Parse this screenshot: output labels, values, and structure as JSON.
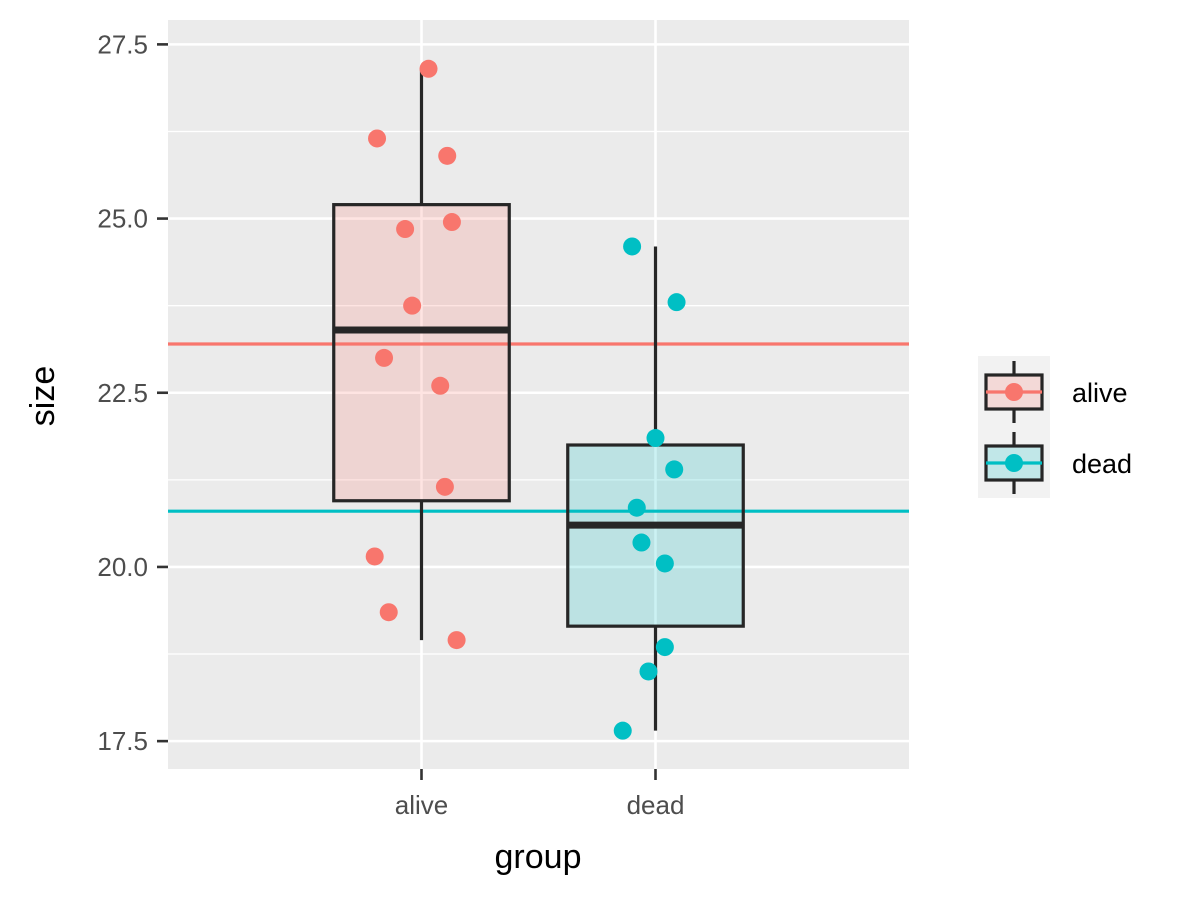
{
  "chart_data": {
    "type": "boxplot",
    "xlabel": "group",
    "ylabel": "size",
    "categories": [
      "alive",
      "dead"
    ],
    "ylim": [
      17.1,
      27.85
    ],
    "yticks": [
      17.5,
      20.0,
      22.5,
      25.0,
      27.5
    ],
    "ytick_labels": [
      "17.5",
      "20.0",
      "22.5",
      "25.0",
      "27.5"
    ],
    "grid": true,
    "legend_position": "right",
    "series": [
      {
        "name": "alive",
        "color": "#F8766D",
        "box_fill": "#F8766D",
        "box": {
          "lower_whisker": 18.95,
          "q1": 20.95,
          "median": 23.4,
          "q3": 25.2,
          "upper_whisker": 27.15
        },
        "mean_line": 23.2,
        "points": [
          {
            "x_jitter": -0.19,
            "y": 26.15
          },
          {
            "x_jitter": 0.03,
            "y": 27.15
          },
          {
            "x_jitter": 0.11,
            "y": 25.9
          },
          {
            "x_jitter": -0.07,
            "y": 24.85
          },
          {
            "x_jitter": 0.13,
            "y": 24.95
          },
          {
            "x_jitter": -0.04,
            "y": 23.75
          },
          {
            "x_jitter": -0.16,
            "y": 23.0
          },
          {
            "x_jitter": 0.08,
            "y": 22.6
          },
          {
            "x_jitter": 0.1,
            "y": 21.15
          },
          {
            "x_jitter": -0.2,
            "y": 20.15
          },
          {
            "x_jitter": -0.14,
            "y": 19.35
          },
          {
            "x_jitter": 0.15,
            "y": 18.95
          }
        ]
      },
      {
        "name": "dead",
        "color": "#00BFC4",
        "box_fill": "#00BFC4",
        "box": {
          "lower_whisker": 17.65,
          "q1": 19.15,
          "median": 20.6,
          "q3": 21.75,
          "upper_whisker": 24.6
        },
        "mean_line": 20.8,
        "points": [
          {
            "x_jitter": -0.1,
            "y": 24.6
          },
          {
            "x_jitter": 0.09,
            "y": 23.8
          },
          {
            "x_jitter": 0.0,
            "y": 21.85
          },
          {
            "x_jitter": 0.08,
            "y": 21.4
          },
          {
            "x_jitter": -0.08,
            "y": 20.85
          },
          {
            "x_jitter": -0.06,
            "y": 20.35
          },
          {
            "x_jitter": 0.04,
            "y": 20.05
          },
          {
            "x_jitter": 0.04,
            "y": 18.85
          },
          {
            "x_jitter": -0.03,
            "y": 18.5
          },
          {
            "x_jitter": -0.14,
            "y": 17.65
          }
        ]
      }
    ]
  }
}
